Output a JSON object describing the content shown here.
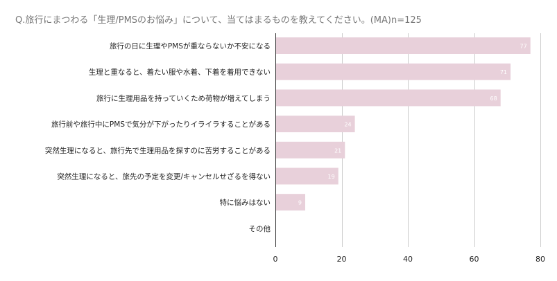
{
  "chart_data": {
    "type": "bar",
    "orientation": "horizontal",
    "title": "Q.旅行にまつわる「生理/PMSのお悩み」について、当てはまるものを教えてください。(MA)n=125",
    "categories": [
      "旅行の日に生理やPMSが重ならないか不安になる",
      "生理と重なると、着たい服や水着、下着を着用できない",
      "旅行に生理用品を持っていくため荷物が増えてしまう",
      "旅行前や旅行中にPMSで気分が下がったりイライラすることがある",
      "突然生理になると、旅行先で生理用品を探すのに苦労することがある",
      "突然生理になると、旅先の予定を変更/キャンセルせざるを得ない",
      "特に悩みはない",
      "その他"
    ],
    "values": [
      77,
      71,
      68,
      24,
      21,
      19,
      9,
      0
    ],
    "data_labels": [
      "77",
      "71",
      "68",
      "24",
      "21",
      "19",
      "9",
      ""
    ],
    "xlim": [
      0,
      80
    ],
    "xticks": [
      0,
      20,
      40,
      60,
      80
    ],
    "xtick_labels": [
      "0",
      "20",
      "40",
      "60",
      "80"
    ],
    "grid": true,
    "legend": "none",
    "colors": {
      "bar": "#e8d0da",
      "grid": "#cccccc",
      "axis": "#333333",
      "label": "#222222",
      "value_label": "#ffffff",
      "title": "#777777"
    }
  }
}
